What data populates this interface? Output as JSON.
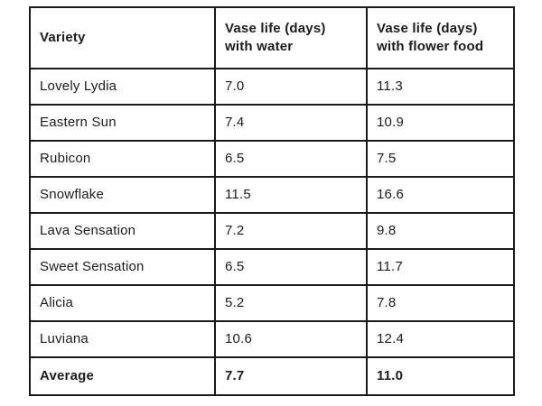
{
  "colors": {
    "background": "#ffffff",
    "border": "#1a1a1a",
    "text": "#1c1c1c"
  },
  "table": {
    "header": {
      "variety": "Variety",
      "water_line1": "Vase life (days)",
      "water_line2": "with water",
      "food_line1": "Vase life (days)",
      "food_line2": "with flower food"
    },
    "rows": [
      [
        "Lovely Lydia",
        "7.0",
        "11.3"
      ],
      [
        "Eastern Sun",
        "7.4",
        "10.9"
      ],
      [
        "Rubicon",
        "6.5",
        "7.5"
      ],
      [
        "Snowflake",
        "11.5",
        "16.6"
      ],
      [
        "Lava Sensation",
        "7.2",
        "9.8"
      ],
      [
        "Sweet Sensation",
        "6.5",
        "11.7"
      ],
      [
        "Alicia",
        "5.2",
        "7.8"
      ],
      [
        "Luviana",
        "10.6",
        "12.4"
      ]
    ],
    "footer": [
      "Average",
      "7.7",
      "11.0"
    ]
  },
  "chart_data": {
    "type": "table",
    "title": "",
    "columns": [
      "Variety",
      "Vase life (days) with water",
      "Vase life (days) with flower food"
    ],
    "categories": [
      "Lovely Lydia",
      "Eastern Sun",
      "Rubicon",
      "Snowflake",
      "Lava Sensation",
      "Sweet Sensation",
      "Alicia",
      "Luviana"
    ],
    "series": [
      {
        "name": "Vase life (days) with water",
        "values": [
          7.0,
          7.4,
          6.5,
          11.5,
          7.2,
          6.5,
          5.2,
          10.6
        ],
        "average": 7.7
      },
      {
        "name": "Vase life (days) with flower food",
        "values": [
          11.3,
          10.9,
          7.5,
          16.6,
          9.8,
          11.7,
          7.8,
          12.4
        ],
        "average": 11.0
      }
    ]
  }
}
